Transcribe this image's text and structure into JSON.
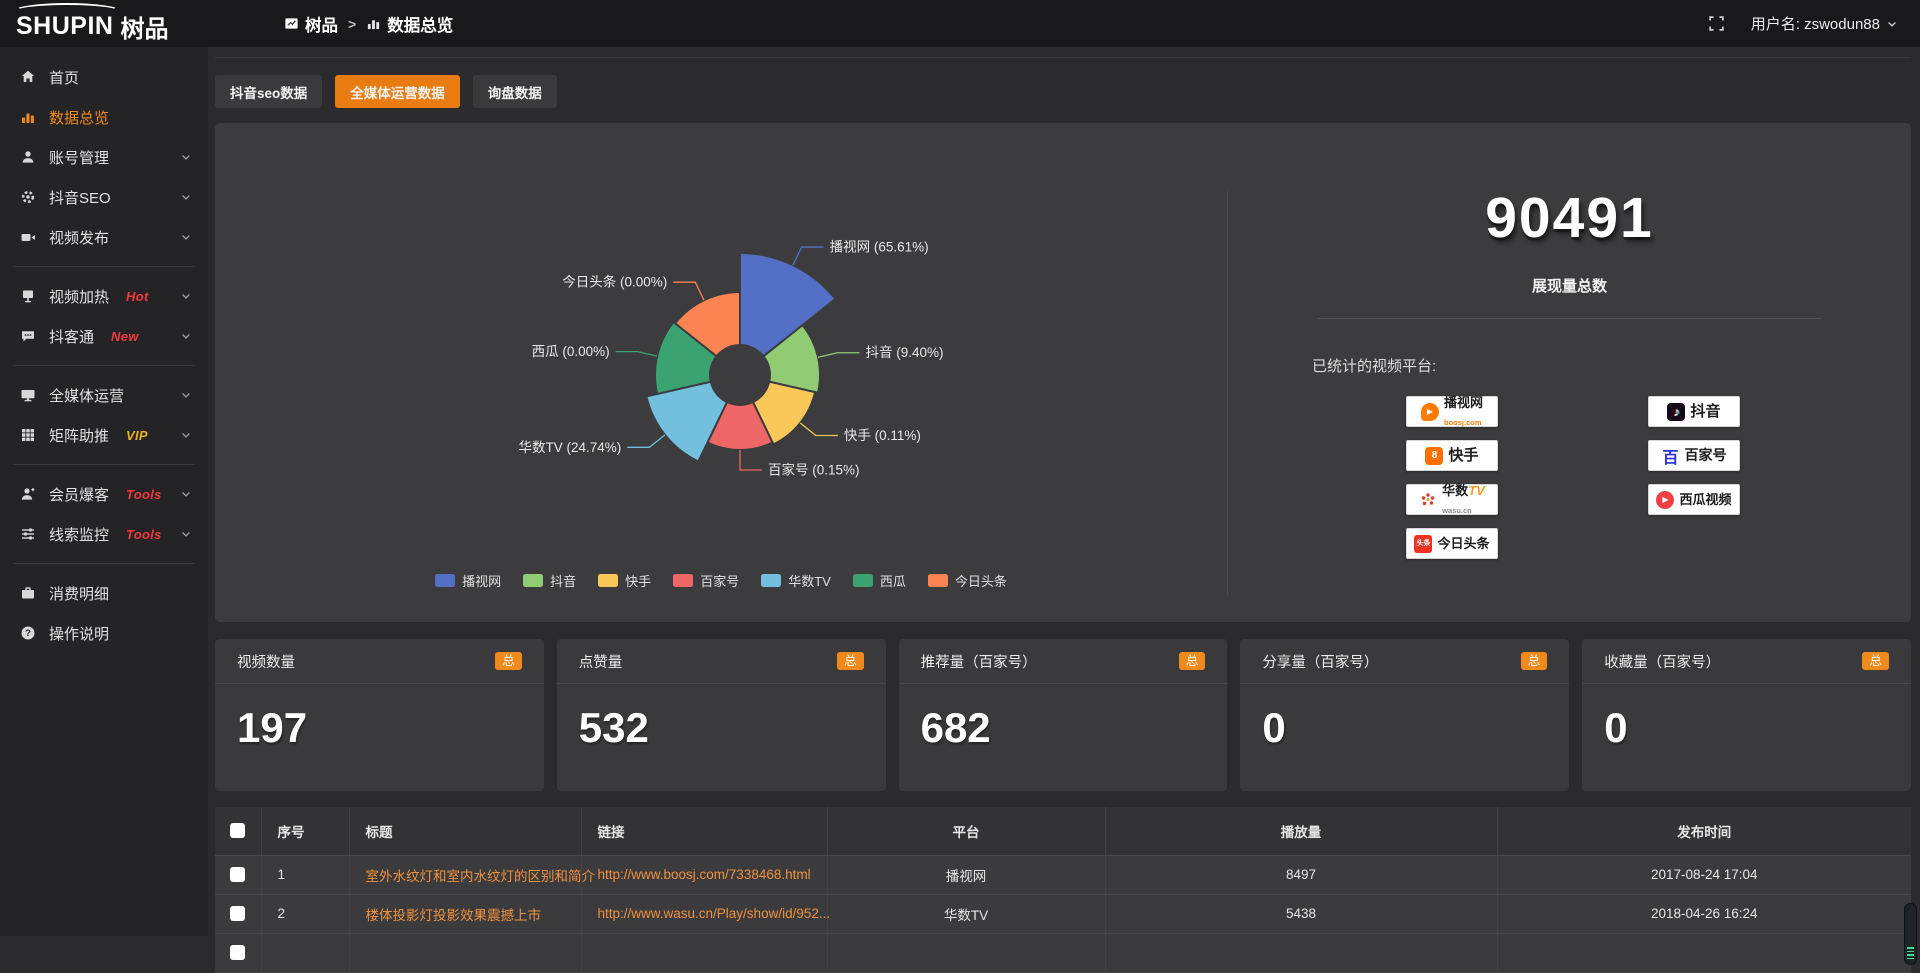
{
  "topbar": {
    "logo_en": "SHUPIN",
    "logo_cn": "树品",
    "breadcrumb": {
      "root": "树品",
      "sep": ">",
      "current": "数据总览"
    },
    "user_label": "用户名: zswodun88"
  },
  "sidebar": {
    "items": [
      {
        "label": "首页"
      },
      {
        "label": "数据总览",
        "active": true
      },
      {
        "label": "账号管理"
      },
      {
        "label": "抖音SEO"
      },
      {
        "label": "视频发布"
      },
      {
        "label": "视频加热",
        "badge": "Hot",
        "badge_color": "#f5383d"
      },
      {
        "label": "抖客通",
        "badge": "New",
        "badge_color": "#f5383d"
      },
      {
        "label": "全媒体运营"
      },
      {
        "label": "矩阵助推",
        "badge": "VIP",
        "badge_color": "#e8b219"
      },
      {
        "label": "会员爆客",
        "badge": "Tools",
        "badge_color": "#f5383d"
      },
      {
        "label": "线索监控",
        "badge": "Tools",
        "badge_color": "#f5383d"
      },
      {
        "label": "消费明细"
      },
      {
        "label": "操作说明"
      }
    ]
  },
  "tabs": [
    {
      "label": "抖音seo数据"
    },
    {
      "label": "全媒体运营数据",
      "active": true
    },
    {
      "label": "询盘数据"
    }
  ],
  "chart_data": {
    "type": "pie",
    "subtype": "nightingale-rose",
    "inner_radius": 30,
    "legend_position": "bottom",
    "slices": [
      {
        "name": "播视网",
        "percent": "65.61%",
        "value": 65.61,
        "color": "#5470c6",
        "radius": 122
      },
      {
        "name": "抖音",
        "percent": "9.40%",
        "value": 9.4,
        "color": "#91cc75",
        "radius": 80
      },
      {
        "name": "快手",
        "percent": "0.11%",
        "value": 0.11,
        "color": "#fac858",
        "radius": 77
      },
      {
        "name": "百家号",
        "percent": "0.15%",
        "value": 0.15,
        "color": "#ee6666",
        "radius": 75
      },
      {
        "name": "华数TV",
        "percent": "24.74%",
        "value": 24.74,
        "color": "#73c0de",
        "radius": 96
      },
      {
        "name": "西瓜",
        "percent": "0.00%",
        "value": 0.0,
        "color": "#3ba272",
        "radius": 85
      },
      {
        "name": "今日头条",
        "percent": "0.00%",
        "value": 0.0,
        "color": "#fc8452",
        "radius": 83
      }
    ]
  },
  "summary": {
    "total_value": "90491",
    "total_label": "展现量总数",
    "platforms_title": "已统计的视频平台:",
    "platforms": [
      {
        "name": "播视网",
        "sub": "boosj.com",
        "key": "boosj"
      },
      {
        "name": "快手",
        "key": "kuaishou"
      },
      {
        "name": "华数",
        "name2": "TV",
        "sub": "wasu.cn",
        "key": "wasu"
      },
      {
        "name": "今日头条",
        "icon_text": "头条",
        "key": "toutiao"
      },
      {
        "name": "抖音",
        "key": "douyin"
      },
      {
        "name": "百家号",
        "icon_text": "百",
        "key": "baijiahao"
      },
      {
        "name": "西瓜视频",
        "key": "xigua"
      }
    ]
  },
  "stat_cards": [
    {
      "label": "视频数量",
      "badge": "总",
      "value": "197"
    },
    {
      "label": "点赞量",
      "badge": "总",
      "value": "532"
    },
    {
      "label": "推荐量（百家号）",
      "badge": "总",
      "value": "682"
    },
    {
      "label": "分享量（百家号）",
      "badge": "总",
      "value": "0"
    },
    {
      "label": "收藏量（百家号）",
      "badge": "总",
      "value": "0"
    }
  ],
  "table": {
    "columns": [
      "序号",
      "标题",
      "链接",
      "平台",
      "播放量",
      "发布时间"
    ],
    "rows": [
      {
        "no": "1",
        "title": "室外水纹灯和室内水纹灯的区别和简介",
        "link": "http://www.boosj.com/7338468.html",
        "platform": "播视网",
        "views": "8497",
        "time": "2017-08-24 17:04"
      },
      {
        "no": "2",
        "title": "楼体投影灯投影效果震撼上市",
        "link": "http://www.wasu.cn/Play/show/id/952...",
        "platform": "华数TV",
        "views": "5438",
        "time": "2018-04-26 16:24"
      }
    ]
  }
}
